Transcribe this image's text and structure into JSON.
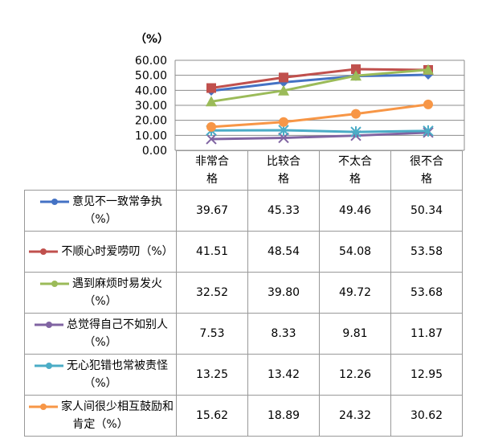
{
  "chart_data": {
    "type": "line",
    "unit_label": "（%）",
    "categories": [
      "非常合格",
      "比较合格",
      "不太合格",
      "很不合格"
    ],
    "ylim": [
      0,
      60
    ],
    "yticks": [
      "0.00",
      "10.00",
      "20.00",
      "30.00",
      "40.00",
      "50.00",
      "60.00"
    ],
    "grid": true,
    "legend": "table",
    "series": [
      {
        "name": "意见不一致常争执（%）",
        "marker": "diamond",
        "color": "#4472C4",
        "values": [
          39.67,
          45.33,
          49.46,
          50.34
        ],
        "labels": [
          "39.67",
          "45.33",
          "49.46",
          "50.34"
        ]
      },
      {
        "name": "不顺心时爱唠叨（%）",
        "marker": "square",
        "color": "#C0504D",
        "values": [
          41.51,
          48.54,
          54.08,
          53.58
        ],
        "labels": [
          "41.51",
          "48.54",
          "54.08",
          "53.58"
        ]
      },
      {
        "name": "遇到麻烦时易发火（%）",
        "marker": "triangle",
        "color": "#9BBB59",
        "values": [
          32.52,
          39.8,
          49.72,
          53.68
        ],
        "labels": [
          "32.52",
          "39.80",
          "49.72",
          "53.68"
        ]
      },
      {
        "name": "总觉得自己不如别人（%）",
        "marker": "x",
        "color": "#8064A2",
        "values": [
          7.53,
          8.33,
          9.81,
          11.87
        ],
        "labels": [
          "7.53",
          "8.33",
          "9.81",
          "11.87"
        ]
      },
      {
        "name": "无心犯错也常被责怪（%）",
        "marker": "star",
        "color": "#4BACC6",
        "values": [
          13.25,
          13.42,
          12.26,
          12.95
        ],
        "labels": [
          "13.25",
          "13.42",
          "12.26",
          "12.95"
        ]
      },
      {
        "name": "家人间很少相互鼓励和肯定（%）",
        "marker": "circle",
        "color": "#F79646",
        "values": [
          15.62,
          18.89,
          24.32,
          30.62
        ],
        "labels": [
          "15.62",
          "18.89",
          "24.32",
          "30.62"
        ]
      }
    ]
  }
}
